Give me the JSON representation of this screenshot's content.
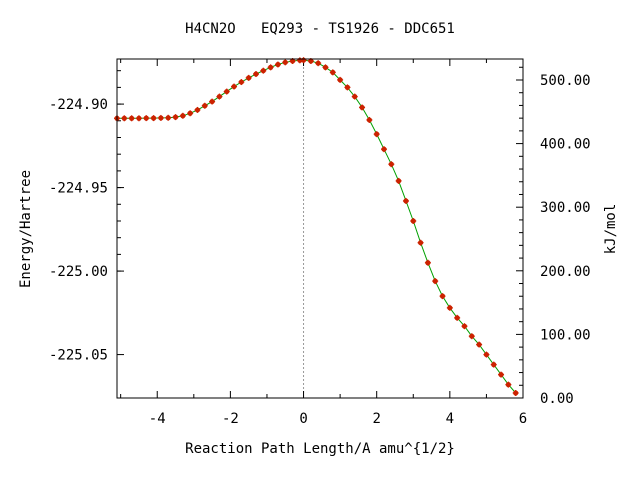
{
  "chart_data": {
    "type": "line",
    "title": "H4CN2O   EQ293 - TS1926 - DDC651",
    "xlabel": "Reaction Path Length/A amu^{1/2}",
    "ylabel": "Energy/Hartree",
    "y2label": "kJ/mol",
    "xlim": [
      -5.1,
      6.0
    ],
    "ylim": [
      -225.076,
      -224.873
    ],
    "y2lim": [
      0,
      533
    ],
    "xticks": [
      -4,
      -2,
      0,
      2,
      4,
      6
    ],
    "xtick_labels": [
      "-4",
      "-2",
      "0",
      "2",
      "4",
      "6"
    ],
    "yticks": [
      -224.9,
      -224.95,
      -225.0,
      -225.05
    ],
    "ytick_labels": [
      "-224.90",
      "-224.95",
      "-225.00",
      "-225.05"
    ],
    "y2ticks": [
      0,
      100,
      200,
      300,
      400,
      500
    ],
    "y2tick_labels": [
      "0.00",
      "100.00",
      "200.00",
      "300.00",
      "400.00",
      "500.00"
    ],
    "ts_x": 0,
    "grid": false,
    "legend": "none",
    "line_color": "#00a000",
    "marker_color": "#cc2200",
    "series": [
      {
        "x": [
          -5.1,
          -4.9,
          -4.7,
          -4.5,
          -4.3,
          -4.1,
          -3.9,
          -3.7,
          -3.5,
          -3.3,
          -3.1,
          -2.9,
          -2.7,
          -2.5,
          -2.3,
          -2.1,
          -1.9,
          -1.7,
          -1.5,
          -1.3,
          -1.1,
          -0.9,
          -0.7,
          -0.5,
          -0.3,
          -0.1,
          0.0,
          0.2,
          0.4,
          0.6,
          0.8,
          1.0,
          1.2,
          1.4,
          1.6,
          1.8,
          2.0,
          2.2,
          2.4,
          2.6,
          2.8,
          3.0,
          3.2,
          3.4,
          3.6,
          3.8,
          4.0,
          4.2,
          4.4,
          4.6,
          4.8,
          5.0,
          5.2,
          5.4,
          5.6,
          5.8
        ],
        "y": [
          -224.9085,
          -224.9085,
          -224.9085,
          -224.9085,
          -224.9084,
          -224.9084,
          -224.9083,
          -224.9082,
          -224.9078,
          -224.907,
          -224.9055,
          -224.9035,
          -224.901,
          -224.8985,
          -224.8955,
          -224.8925,
          -224.8895,
          -224.8868,
          -224.8843,
          -224.882,
          -224.88,
          -224.878,
          -224.8763,
          -224.875,
          -224.8742,
          -224.8738,
          -224.8737,
          -224.8742,
          -224.8755,
          -224.878,
          -224.881,
          -224.8855,
          -224.89,
          -224.8955,
          -224.902,
          -224.9095,
          -224.918,
          -224.927,
          -224.936,
          -224.946,
          -224.958,
          -224.97,
          -224.983,
          -224.995,
          -225.006,
          -225.015,
          -225.022,
          -225.028,
          -225.033,
          -225.039,
          -225.044,
          -225.05,
          -225.056,
          -225.062,
          -225.068,
          -225.073
        ]
      }
    ]
  }
}
